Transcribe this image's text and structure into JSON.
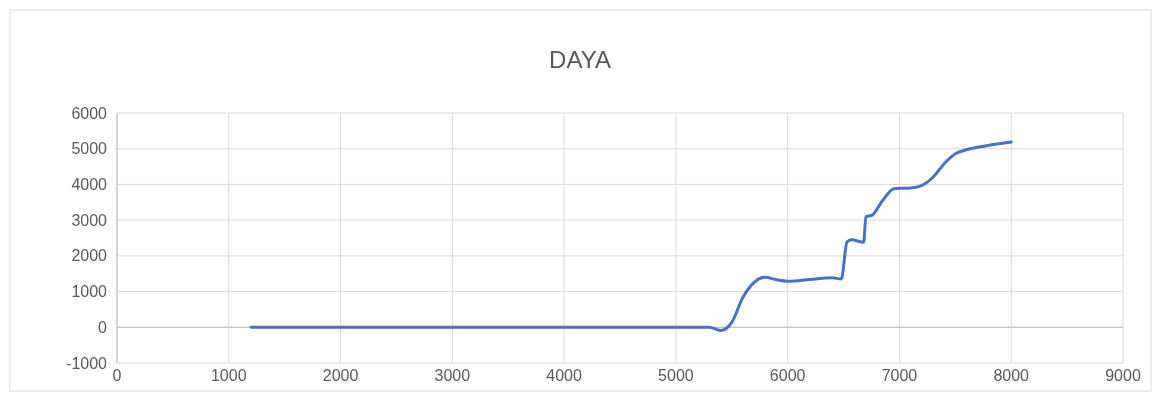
{
  "chart_data": {
    "type": "line",
    "title": "DAYA",
    "x": [
      1200,
      5200,
      5300,
      5400,
      5500,
      5600,
      5700,
      5800,
      5900,
      6000,
      6200,
      6400,
      6480,
      6530,
      6570,
      6680,
      6700,
      6750,
      6850,
      6950,
      7100,
      7200,
      7300,
      7400,
      7500,
      7600,
      7700,
      8000
    ],
    "series": [
      {
        "color": "#4472c4",
        "values": [
          0,
          0,
          0,
          -90,
          140,
          840,
          1260,
          1400,
          1330,
          1290,
          1340,
          1390,
          1350,
          2380,
          2450,
          2380,
          3100,
          3130,
          3550,
          3880,
          3900,
          3970,
          4200,
          4580,
          4860,
          4970,
          5040,
          5190
        ]
      }
    ],
    "xlim": [
      0,
      9000
    ],
    "xticks": [
      0,
      1000,
      2000,
      3000,
      4000,
      5000,
      6000,
      7000,
      8000,
      9000
    ],
    "ylim": [
      -1000,
      6000
    ],
    "yticks": [
      -1000,
      0,
      1000,
      2000,
      3000,
      4000,
      5000,
      6000
    ],
    "grid": true,
    "marker": "none",
    "line_style": "solid"
  }
}
